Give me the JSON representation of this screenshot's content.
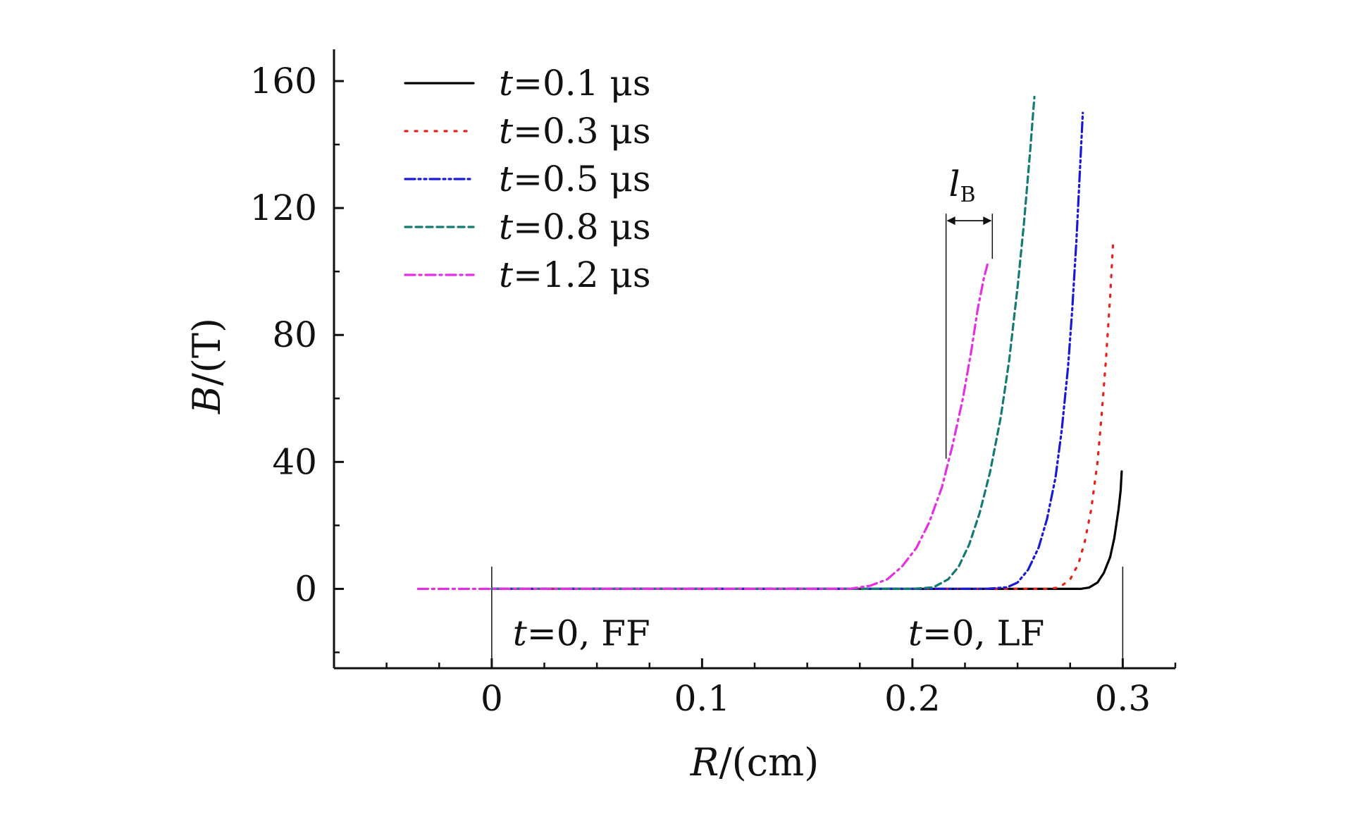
{
  "chart_data": {
    "type": "line",
    "title": "",
    "xlabel": {
      "var": "R",
      "unit": "/(cm)"
    },
    "ylabel": {
      "var": "B",
      "unit": "/(T)"
    },
    "xlim": [
      -0.075,
      0.325
    ],
    "ylim": [
      -25,
      170
    ],
    "x_major_ticks": [
      0,
      0.1,
      0.2,
      0.3
    ],
    "x_tick_labels": [
      "0",
      "0.1",
      "0.2",
      "0.3"
    ],
    "x_minor_ticks": [
      -0.05,
      -0.025,
      0.025,
      0.05,
      0.075,
      0.125,
      0.15,
      0.175,
      0.225,
      0.25,
      0.275,
      0.325
    ],
    "y_major_ticks": [
      0,
      40,
      80,
      120,
      160
    ],
    "y_tick_labels": [
      "0",
      "40",
      "80",
      "120",
      "160"
    ],
    "y_minor_ticks": [
      -20,
      20,
      60,
      100,
      140
    ],
    "grid": false,
    "legend_position": "top-left",
    "series": [
      {
        "name": "t=0.1 μs",
        "legend_var": "t",
        "legend_rest": "=0.1 μs",
        "color": "#000000",
        "dash": "solid",
        "x": [
          0,
          0.05,
          0.1,
          0.15,
          0.2,
          0.25,
          0.28,
          0.284,
          0.288,
          0.291,
          0.294,
          0.296,
          0.298,
          0.299,
          0.2995
        ],
        "y": [
          0,
          0,
          0,
          0,
          0,
          0,
          0,
          0.4,
          2,
          5,
          10,
          16,
          25,
          31,
          37
        ]
      },
      {
        "name": "t=0.3 μs",
        "legend_var": "t",
        "legend_rest": "=0.3 μs",
        "color": "#e8201b",
        "dash": "dot",
        "x": [
          0,
          0.05,
          0.1,
          0.15,
          0.2,
          0.25,
          0.265,
          0.27,
          0.275,
          0.279,
          0.282,
          0.285,
          0.288,
          0.29,
          0.292,
          0.294,
          0.2955
        ],
        "y": [
          0,
          0,
          0,
          0,
          0,
          0,
          0,
          0.5,
          3,
          8,
          15,
          25,
          40,
          55,
          72,
          92,
          110
        ]
      },
      {
        "name": "t=0.5 μs",
        "legend_var": "t",
        "legend_rest": "=0.5 μs",
        "color": "#1a1ad6",
        "dash": "dashdotdot",
        "x": [
          0,
          0.05,
          0.1,
          0.15,
          0.2,
          0.235,
          0.245,
          0.25,
          0.255,
          0.26,
          0.264,
          0.268,
          0.271,
          0.274,
          0.276,
          0.278,
          0.2795,
          0.281
        ],
        "y": [
          0,
          0,
          0,
          0,
          0,
          0,
          0.5,
          2,
          6,
          13,
          22,
          35,
          50,
          70,
          88,
          110,
          130,
          150
        ]
      },
      {
        "name": "t=0.8 μs",
        "legend_var": "t",
        "legend_rest": "=0.8 μs",
        "color": "#147a74",
        "dash": "dash",
        "x": [
          0,
          0.05,
          0.1,
          0.15,
          0.2,
          0.21,
          0.217,
          0.222,
          0.227,
          0.232,
          0.237,
          0.242,
          0.246,
          0.25,
          0.253,
          0.256,
          0.258
        ],
        "y": [
          0,
          0,
          0,
          0,
          0,
          0.5,
          3,
          7,
          14,
          24,
          37,
          54,
          72,
          95,
          115,
          138,
          155
        ]
      },
      {
        "name": "t=1.2 μs",
        "legend_var": "t",
        "legend_rest": "=1.2 μs",
        "color": "#e62ee6",
        "dash": "dashdot",
        "x": [
          -0.035,
          0,
          0.05,
          0.1,
          0.15,
          0.17,
          0.18,
          0.188,
          0.195,
          0.202,
          0.208,
          0.214,
          0.219,
          0.224,
          0.228,
          0.231,
          0.234,
          0.236
        ],
        "y": [
          0,
          0,
          0,
          0,
          0,
          0,
          1,
          3,
          7,
          13,
          21,
          32,
          45,
          60,
          75,
          88,
          98,
          103
        ]
      }
    ],
    "annotations": [
      {
        "id": "lb",
        "label_var": "l",
        "label_sub": "B",
        "x_from": 0.216,
        "x_to": 0.238,
        "y_label": 126,
        "y_arrow": 116
      },
      {
        "id": "ff",
        "label_var": "t",
        "label_rest": "=0, FF",
        "x": 0,
        "x_text": 0.01,
        "y_text": -14
      },
      {
        "id": "lf",
        "label_var": "t",
        "label_rest": "=0, LF",
        "x": 0.3,
        "x_text": 0.198,
        "y_text": -14
      }
    ]
  }
}
